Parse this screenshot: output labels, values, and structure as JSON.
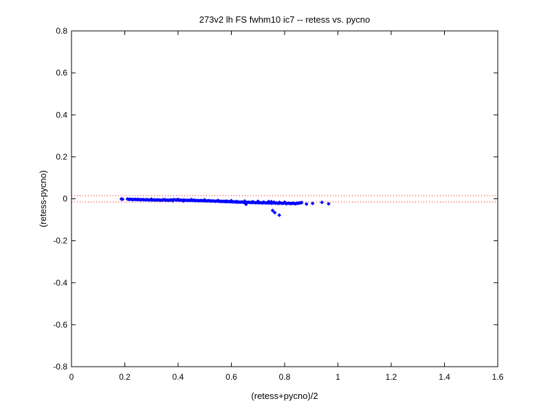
{
  "chart_data": {
    "type": "scatter",
    "title": "273v2 lh FS fwhm10 ic7 -- retess vs. pycno",
    "xlabel": "(retess+pycno)/2",
    "ylabel": "(retess-pycno)",
    "xlim": [
      0,
      1.6
    ],
    "ylim": [
      -0.8,
      0.8
    ],
    "xticks": [
      "0",
      "0.2",
      "0.4",
      "0.6",
      "0.8",
      "1",
      "1.2",
      "1.4",
      "1.6"
    ],
    "yticks": [
      "-0.8",
      "-0.6",
      "-0.4",
      "-0.2",
      "0",
      "0.2",
      "0.4",
      "0.6",
      "0.8"
    ],
    "grid": false,
    "colors": {
      "points": "#0000ff",
      "reference_lines": "#ff0000"
    },
    "reference_lines": [
      0.015,
      -0.015
    ],
    "series": [
      {
        "marker": "diamond",
        "x": [
          0.187,
          0.192,
          0.21,
          0.215,
          0.22,
          0.225,
          0.23,
          0.235,
          0.24,
          0.245,
          0.25,
          0.255,
          0.26,
          0.265,
          0.27,
          0.275,
          0.28,
          0.285,
          0.29,
          0.295,
          0.3,
          0.305,
          0.31,
          0.315,
          0.32,
          0.325,
          0.33,
          0.335,
          0.34,
          0.345,
          0.35,
          0.355,
          0.36,
          0.365,
          0.37,
          0.375,
          0.38,
          0.385,
          0.39,
          0.395,
          0.4,
          0.405,
          0.41,
          0.415,
          0.42,
          0.425,
          0.43,
          0.435,
          0.44,
          0.445,
          0.45,
          0.455,
          0.46,
          0.465,
          0.47,
          0.475,
          0.48,
          0.485,
          0.49,
          0.495,
          0.5,
          0.505,
          0.51,
          0.515,
          0.52,
          0.525,
          0.53,
          0.535,
          0.54,
          0.545,
          0.55,
          0.555,
          0.56,
          0.565,
          0.57,
          0.575,
          0.58,
          0.585,
          0.59,
          0.595,
          0.6,
          0.605,
          0.61,
          0.615,
          0.62,
          0.625,
          0.63,
          0.635,
          0.64,
          0.645,
          0.65,
          0.655,
          0.66,
          0.665,
          0.67,
          0.675,
          0.68,
          0.685,
          0.69,
          0.695,
          0.7,
          0.705,
          0.71,
          0.715,
          0.72,
          0.725,
          0.73,
          0.735,
          0.74,
          0.745,
          0.75,
          0.755,
          0.76,
          0.765,
          0.77,
          0.775,
          0.78,
          0.785,
          0.79,
          0.795,
          0.8,
          0.805,
          0.81,
          0.815,
          0.82,
          0.825,
          0.83,
          0.835,
          0.84,
          0.845,
          0.85,
          0.855,
          0.86,
          0.864,
          0.3,
          0.35,
          0.4,
          0.45,
          0.5,
          0.55,
          0.6,
          0.65,
          0.7,
          0.75,
          0.8,
          0.38,
          0.42,
          0.46,
          0.52,
          0.58,
          0.62,
          0.68,
          0.72,
          0.78,
          0.74,
          0.76,
          0.655,
          0.882,
          0.905,
          0.94,
          0.965,
          0.755,
          0.763,
          0.78
        ],
        "y": [
          -0.001,
          -0.002,
          -0.001,
          -0.003,
          -0.002,
          -0.003,
          -0.004,
          -0.003,
          -0.003,
          -0.004,
          -0.003,
          -0.004,
          -0.005,
          -0.004,
          -0.004,
          -0.005,
          -0.005,
          -0.004,
          -0.006,
          -0.005,
          -0.005,
          -0.006,
          -0.005,
          -0.006,
          -0.006,
          -0.005,
          -0.006,
          -0.007,
          -0.006,
          -0.005,
          -0.006,
          -0.007,
          -0.006,
          -0.007,
          -0.006,
          -0.005,
          -0.006,
          -0.004,
          -0.006,
          -0.005,
          -0.006,
          -0.007,
          -0.006,
          -0.007,
          -0.006,
          -0.007,
          -0.007,
          -0.008,
          -0.007,
          -0.008,
          -0.007,
          -0.008,
          -0.008,
          -0.009,
          -0.008,
          -0.009,
          -0.009,
          -0.008,
          -0.009,
          -0.009,
          -0.009,
          -0.01,
          -0.01,
          -0.009,
          -0.01,
          -0.011,
          -0.01,
          -0.011,
          -0.012,
          -0.011,
          -0.011,
          -0.012,
          -0.012,
          -0.013,
          -0.012,
          -0.013,
          -0.014,
          -0.013,
          -0.013,
          -0.014,
          -0.014,
          -0.015,
          -0.014,
          -0.015,
          -0.016,
          -0.015,
          -0.016,
          -0.016,
          -0.015,
          -0.017,
          -0.016,
          -0.017,
          -0.017,
          -0.016,
          -0.018,
          -0.017,
          -0.018,
          -0.017,
          -0.019,
          -0.018,
          -0.018,
          -0.019,
          -0.018,
          -0.02,
          -0.019,
          -0.018,
          -0.02,
          -0.019,
          -0.02,
          -0.019,
          -0.021,
          -0.02,
          -0.019,
          -0.021,
          -0.02,
          -0.022,
          -0.021,
          -0.02,
          -0.022,
          -0.021,
          -0.02,
          -0.023,
          -0.022,
          -0.021,
          -0.022,
          -0.023,
          -0.021,
          -0.022,
          -0.024,
          -0.021,
          -0.022,
          -0.02,
          -0.019,
          -0.018,
          -0.002,
          -0.004,
          -0.003,
          -0.004,
          -0.005,
          -0.008,
          -0.009,
          -0.011,
          -0.012,
          -0.014,
          -0.016,
          -0.009,
          -0.01,
          -0.006,
          -0.01,
          -0.011,
          -0.013,
          -0.014,
          -0.016,
          -0.017,
          -0.013,
          -0.016,
          -0.026,
          -0.025,
          -0.022,
          -0.017,
          -0.024,
          -0.056,
          -0.066,
          -0.078
        ]
      }
    ]
  }
}
